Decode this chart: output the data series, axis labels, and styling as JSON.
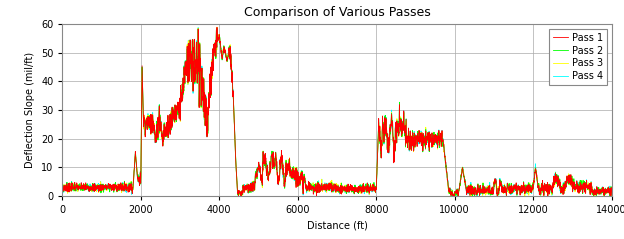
{
  "title": "Comparison of Various Passes",
  "xlabel": "Distance (ft)",
  "ylabel": "Deflection Slope (mil/ft)",
  "xlim": [
    0,
    14000
  ],
  "ylim": [
    0,
    60
  ],
  "xticks": [
    0,
    2000,
    4000,
    6000,
    8000,
    10000,
    12000,
    14000
  ],
  "yticks": [
    0,
    10,
    20,
    30,
    40,
    50,
    60
  ],
  "passes": [
    "Pass 1",
    "Pass 2",
    "Pass 3",
    "Pass 4"
  ],
  "colors": [
    "#FF0000",
    "#00FF00",
    "#FFFF00",
    "#00FFFF"
  ],
  "linewidth": 0.6,
  "background_color": "#FFFFFF",
  "legend_fontsize": 7,
  "title_fontsize": 9,
  "axis_label_fontsize": 7,
  "tick_fontsize": 7,
  "figsize": [
    6.24,
    2.39
  ],
  "dpi": 100
}
